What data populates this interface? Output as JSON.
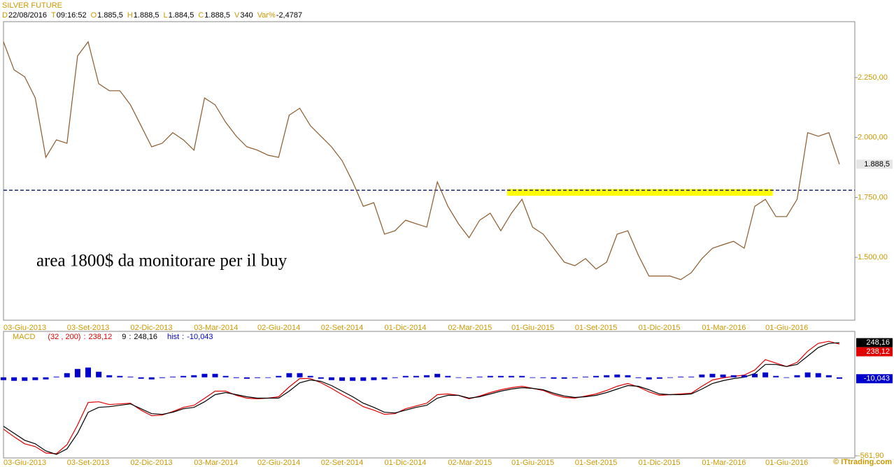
{
  "chart_data": [
    {
      "type": "line",
      "title": "SILVER FUTURE",
      "info": [
        {
          "key": "D",
          "value": "22/08/2016"
        },
        {
          "key": "T",
          "value": "09:16:52"
        },
        {
          "key": "O",
          "value": "1.885,5"
        },
        {
          "key": "H",
          "value": "1.888,5"
        },
        {
          "key": "L",
          "value": "1.884,5"
        },
        {
          "key": "C",
          "value": "1.888,5"
        },
        {
          "key": "V",
          "value": "340"
        },
        {
          "key": "Var%",
          "value": "-2,4787"
        }
      ],
      "categories": [
        "03-Giu-2013",
        null,
        null,
        null,
        null,
        null,
        "03-Set-2013",
        null,
        null,
        null,
        null,
        null,
        "02-Dic-2013",
        null,
        null,
        null,
        null,
        null,
        "03-Mar-2014",
        null,
        null,
        null,
        null,
        null,
        "02-Giu-2014",
        null,
        null,
        null,
        null,
        null,
        "02-Set-2014",
        null,
        null,
        null,
        null,
        null,
        "01-Dic-2014",
        null,
        null,
        null,
        null,
        null,
        "02-Mar-2015",
        null,
        null,
        null,
        null,
        null,
        "01-Giu-2015",
        null,
        null,
        null,
        null,
        null,
        "01-Set-2015",
        null,
        null,
        null,
        null,
        null,
        "01-Dic-2015",
        null,
        null,
        null,
        null,
        null,
        "01-Mar-2016",
        null,
        null,
        null,
        null,
        null,
        "01-Giu-2016",
        null,
        null,
        null,
        null,
        null,
        null,
        null
      ],
      "values": [
        2399,
        2282,
        2253,
        2165,
        1917,
        1990,
        1976,
        2340,
        2399,
        2224,
        2195,
        2195,
        2136,
        2049,
        1961,
        1976,
        2020,
        1990,
        1947,
        2165,
        2136,
        2063,
        2005,
        1961,
        1947,
        1926,
        1917,
        2093,
        2122,
        2049,
        2005,
        1961,
        1903,
        1815,
        1713,
        1728,
        1597,
        1611,
        1655,
        1640,
        1626,
        1815,
        1713,
        1640,
        1582,
        1655,
        1684,
        1611,
        1684,
        1742,
        1626,
        1597,
        1538,
        1480,
        1465,
        1495,
        1451,
        1480,
        1597,
        1611,
        1509,
        1422,
        1422,
        1422,
        1407,
        1436,
        1495,
        1538,
        1553,
        1567,
        1538,
        1713,
        1742,
        1670,
        1670,
        1742,
        2020,
        2005,
        2020,
        1888.5
      ],
      "color": "#8b5a2b",
      "last_label": "1.888,5",
      "ylim": [
        1238,
        2483
      ],
      "yticks": [
        {
          "value": 1500,
          "label": "1.500,00"
        },
        {
          "value": 1750,
          "label": "1.750,00"
        },
        {
          "value": 2000,
          "label": "2.000,00"
        },
        {
          "value": 2250,
          "label": "2.250,00"
        }
      ],
      "reference_line": {
        "value": 1780,
        "color": "#1a237e"
      },
      "highlight": {
        "from": 47.6,
        "to": 72.7,
        "ylim": [
          1757,
          1785
        ],
        "color": "#ffff00"
      },
      "annotation": "area 1800$ da monitorare per il buy"
    },
    {
      "type": "line",
      "title": "MACD",
      "categories": [
        "03-Giu-2013",
        null,
        null,
        null,
        null,
        null,
        "03-Set-2013",
        null,
        null,
        null,
        null,
        null,
        "02-Dic-2013",
        null,
        null,
        null,
        null,
        null,
        "03-Mar-2014",
        null,
        null,
        null,
        null,
        null,
        "02-Giu-2014",
        null,
        null,
        null,
        null,
        null,
        "02-Set-2014",
        null,
        null,
        null,
        null,
        null,
        "01-Dic-2014",
        null,
        null,
        null,
        null,
        null,
        "02-Mar-2015",
        null,
        null,
        null,
        null,
        null,
        "01-Giu-2015",
        null,
        null,
        null,
        null,
        null,
        "01-Set-2015",
        null,
        null,
        null,
        null,
        null,
        "01-Dic-2015",
        null,
        null,
        null,
        null,
        null,
        "01-Mar-2016",
        null,
        null,
        null,
        null,
        null,
        "01-Giu-2016",
        null,
        null,
        null,
        null,
        null,
        null,
        null
      ],
      "series": [
        {
          "name": "(32 , 200)",
          "color": "#e00000",
          "last_label": "238,12",
          "values": [
            -371,
            -426,
            -476,
            -496,
            -542,
            -547,
            -482,
            -341,
            -180,
            -175,
            -195,
            -190,
            -185,
            -235,
            -275,
            -270,
            -245,
            -215,
            -200,
            -150,
            -99,
            -99,
            -129,
            -149,
            -154,
            -149,
            -139,
            -69,
            -9,
            -9,
            -39,
            -79,
            -124,
            -164,
            -210,
            -235,
            -265,
            -260,
            -225,
            -205,
            -185,
            -124,
            -119,
            -129,
            -154,
            -134,
            -109,
            -89,
            -74,
            -64,
            -79,
            -94,
            -124,
            -144,
            -149,
            -134,
            -119,
            -94,
            -64,
            -44,
            -69,
            -104,
            -129,
            -124,
            -119,
            -114,
            -64,
            -19,
            -4,
            6,
            16,
            52,
            127,
            102,
            77,
            107,
            187,
            243,
            258,
            238.12
          ]
        },
        {
          "name": "9",
          "color": "#000000",
          "last_label": "248,16",
          "values": [
            -351,
            -401,
            -451,
            -476,
            -527,
            -552,
            -512,
            -401,
            -250,
            -215,
            -210,
            -200,
            -190,
            -225,
            -260,
            -265,
            -250,
            -225,
            -215,
            -175,
            -124,
            -109,
            -124,
            -139,
            -149,
            -149,
            -149,
            -99,
            -39,
            -19,
            -29,
            -59,
            -99,
            -139,
            -185,
            -215,
            -250,
            -255,
            -235,
            -215,
            -200,
            -149,
            -129,
            -129,
            -149,
            -139,
            -119,
            -99,
            -84,
            -74,
            -79,
            -89,
            -114,
            -134,
            -144,
            -139,
            -129,
            -109,
            -84,
            -59,
            -64,
            -89,
            -119,
            -124,
            -124,
            -119,
            -84,
            -44,
            -24,
            -9,
            1,
            27,
            92,
            92,
            77,
            92,
            152,
            213,
            243,
            248.16
          ]
        },
        {
          "name": "hist",
          "type": "bar",
          "color": "#0000cc",
          "last_label": "-10,043",
          "values": [
            -20,
            -25,
            -25,
            -20,
            -15,
            5,
            30,
            60,
            70,
            40,
            15,
            10,
            5,
            -10,
            -15,
            -5,
            5,
            10,
            15,
            25,
            25,
            10,
            -5,
            -10,
            -5,
            0,
            10,
            30,
            30,
            10,
            -10,
            -20,
            -25,
            -25,
            -25,
            -20,
            -15,
            -5,
            10,
            10,
            15,
            25,
            10,
            0,
            -5,
            5,
            10,
            10,
            10,
            10,
            0,
            -5,
            -10,
            -10,
            -5,
            5,
            10,
            15,
            20,
            15,
            -5,
            -15,
            -10,
            0,
            5,
            5,
            20,
            25,
            20,
            15,
            15,
            25,
            35,
            10,
            0,
            15,
            35,
            30,
            15,
            -10.043
          ]
        }
      ],
      "ylim": [
        -577,
        329
      ],
      "yticks": [
        {
          "value": -561.9,
          "label": "-561,90"
        }
      ]
    }
  ],
  "footer": "© ITtrading.com"
}
